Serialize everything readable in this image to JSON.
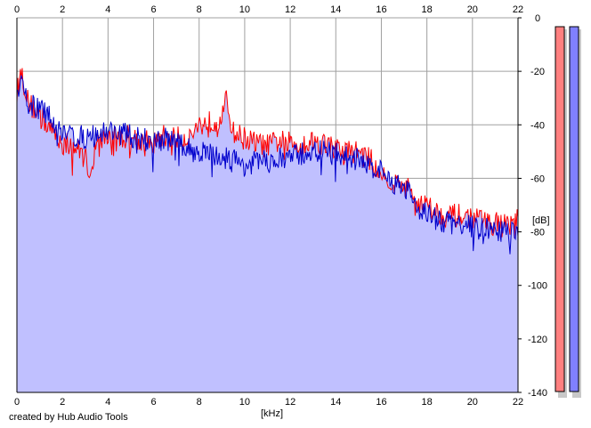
{
  "credit": "created by Hub Audio Tools",
  "chart_data": {
    "type": "area",
    "xlabel": "[kHz]",
    "ylabel": "[dB]",
    "xlim": [
      0,
      22
    ],
    "ylim": [
      -140,
      0
    ],
    "x_ticks": [
      0,
      2,
      4,
      6,
      8,
      10,
      12,
      14,
      16,
      18,
      20,
      22
    ],
    "y_ticks": [
      0,
      -20,
      -40,
      -60,
      -80,
      -100,
      -120,
      -140
    ],
    "grid": true,
    "x_axis_labels_top": true,
    "x_axis_labels_bottom": true,
    "y_axis_position": "right",
    "fill_color": "#c0c0ff",
    "series": [
      {
        "color": "#ff0000",
        "x": [
          0,
          0.2,
          0.5,
          1.0,
          1.5,
          2.0,
          2.5,
          3.0,
          3.2,
          3.5,
          4.0,
          4.5,
          5.0,
          5.5,
          6.0,
          6.5,
          7.0,
          7.5,
          8.0,
          8.5,
          9.0,
          9.2,
          9.5,
          10.0,
          10.5,
          11.0,
          11.5,
          12.0,
          12.5,
          13.0,
          13.5,
          14.0,
          14.5,
          15.0,
          15.5,
          16.0,
          16.5,
          17.0,
          17.5,
          18.0,
          18.5,
          19.0,
          19.5,
          20.0,
          20.5,
          21.0,
          21.5,
          22.0
        ],
        "y": [
          -28,
          -20,
          -32,
          -36,
          -42,
          -47,
          -48,
          -52,
          -58,
          -47,
          -44,
          -45,
          -44,
          -46,
          -47,
          -44,
          -45,
          -45,
          -40,
          -39,
          -37,
          -31,
          -43,
          -45,
          -47,
          -48,
          -46,
          -47,
          -47,
          -46,
          -47,
          -49,
          -50,
          -50,
          -53,
          -58,
          -62,
          -62,
          -68,
          -70,
          -73,
          -74,
          -74,
          -75,
          -76,
          -77,
          -77,
          -76
        ]
      },
      {
        "color": "#0000cc",
        "x": [
          0,
          0.2,
          0.5,
          1.0,
          1.5,
          2.0,
          2.5,
          3.0,
          3.5,
          4.0,
          4.5,
          5.0,
          5.5,
          6.0,
          6.5,
          7.0,
          7.5,
          8.0,
          8.5,
          9.0,
          9.5,
          10.0,
          10.5,
          11.0,
          11.5,
          12.0,
          12.5,
          13.0,
          13.5,
          14.0,
          14.5,
          15.0,
          15.5,
          16.0,
          16.5,
          17.0,
          17.5,
          18.0,
          18.5,
          19.0,
          19.5,
          20.0,
          20.5,
          21.0,
          21.5,
          22.0
        ],
        "y": [
          -30,
          -25,
          -32,
          -34,
          -38,
          -42,
          -44,
          -45,
          -44,
          -42,
          -43,
          -44,
          -45,
          -46,
          -45,
          -47,
          -49,
          -50,
          -51,
          -52,
          -53,
          -55,
          -54,
          -54,
          -53,
          -52,
          -51,
          -50,
          -50,
          -51,
          -52,
          -53,
          -55,
          -58,
          -62,
          -62,
          -70,
          -73,
          -76,
          -77,
          -77,
          -78,
          -79,
          -80,
          -80,
          -81
        ]
      }
    ],
    "level_meters": [
      {
        "color": "#ff8080"
      },
      {
        "color": "#8080ff"
      }
    ]
  }
}
